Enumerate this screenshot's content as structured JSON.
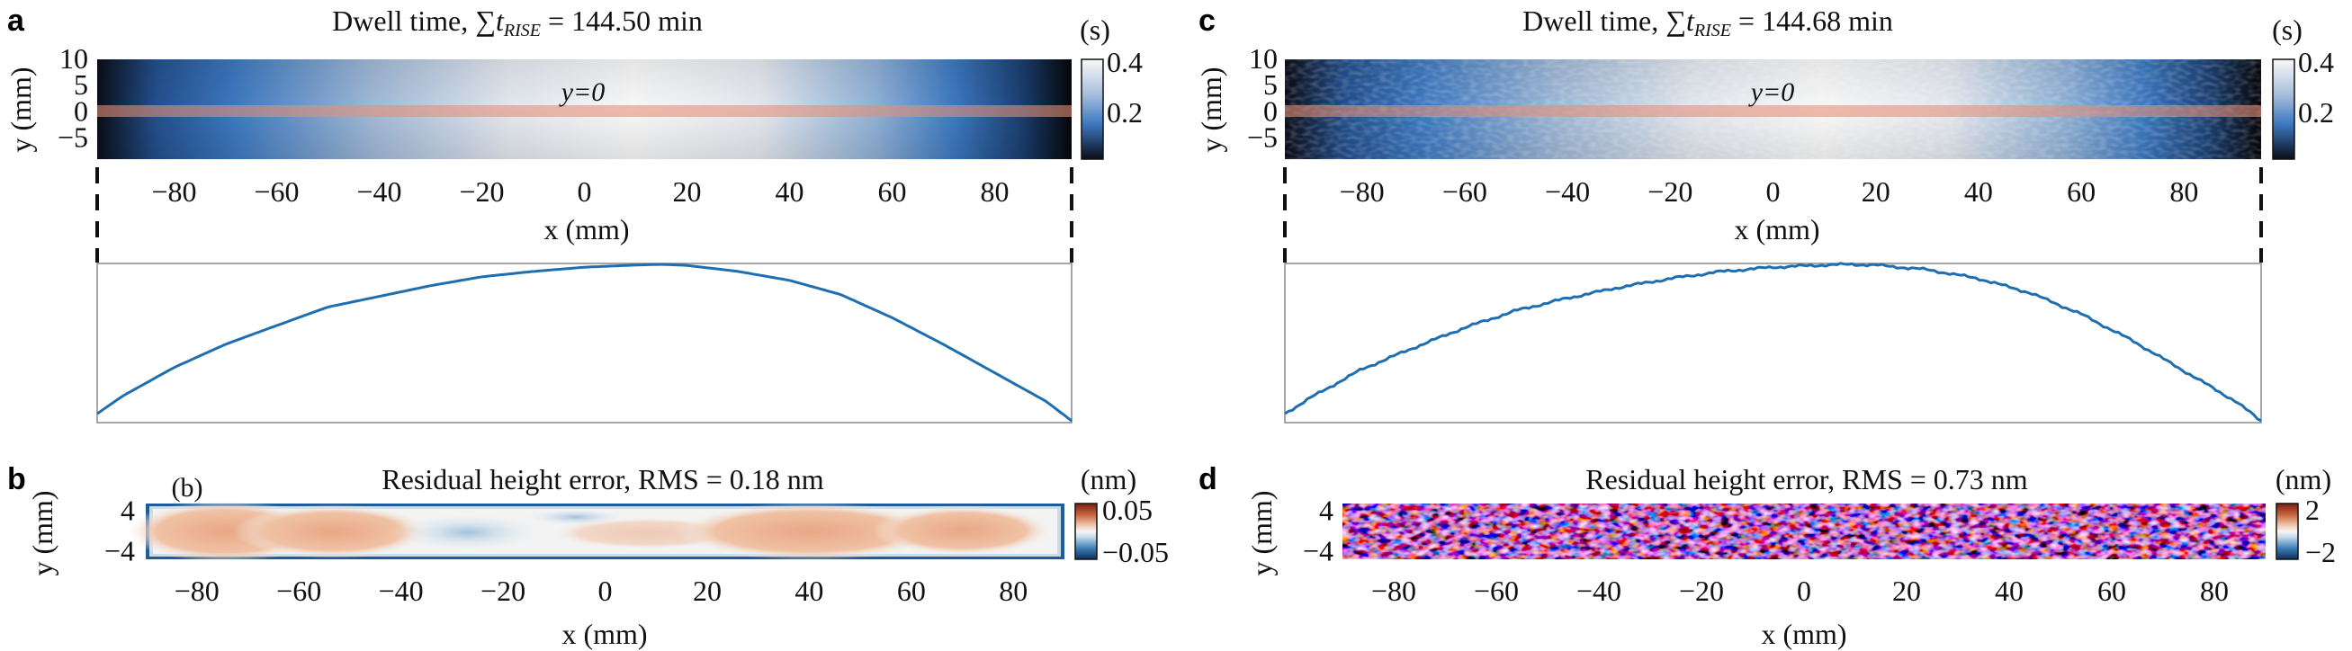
{
  "colors": {
    "dwell_dark": "#0b0d17",
    "dwell_mid": "#3c78c0",
    "dwell_light": "#f7f7f7",
    "profile_line": "#1f6fb0",
    "residual_red": "#b2482a",
    "residual_peach": "#eebf9f",
    "residual_blue": "#1d5d9b",
    "stripe": "#e58f78"
  },
  "panels": {
    "a": {
      "letter": "a",
      "title_prefix": "Dwell time, ",
      "sum_symbol": "∑",
      "t_symbol": "t",
      "t_subscript": "RISE",
      "title_suffix": " = 144.50 min",
      "unit": "(s)",
      "colorbar_ticks": [
        "0.4",
        "0.2"
      ],
      "line_label": "y=0",
      "ylabel": "y (mm)",
      "yticks": [
        "10",
        "5",
        "0",
        "−5"
      ],
      "xlabel": "x (mm)",
      "xticks": [
        "−80",
        "−60",
        "−40",
        "−20",
        "0",
        "20",
        "40",
        "60",
        "80"
      ]
    },
    "b": {
      "letter": "b",
      "inset_label": "(b)",
      "title": "Residual height error, RMS = 0.18 nm",
      "unit": "(nm)",
      "colorbar_ticks": [
        "0.05",
        "−0.05"
      ],
      "ylabel": "y (mm)",
      "yticks": [
        "4",
        "−4"
      ],
      "xlabel": "x (mm)",
      "xticks": [
        "−80",
        "−60",
        "−40",
        "−20",
        "0",
        "20",
        "40",
        "60",
        "80"
      ]
    },
    "c": {
      "letter": "c",
      "title_prefix": "Dwell time, ",
      "sum_symbol": "∑",
      "t_symbol": "t",
      "t_subscript": "RISE",
      "title_suffix": " = 144.68 min",
      "unit": "(s)",
      "colorbar_ticks": [
        "0.4",
        "0.2"
      ],
      "line_label": "y=0",
      "ylabel": "y (mm)",
      "yticks": [
        "10",
        "5",
        "0",
        "−5"
      ],
      "xlabel": "x (mm)",
      "xticks": [
        "−80",
        "−60",
        "−40",
        "−20",
        "0",
        "20",
        "40",
        "60",
        "80"
      ]
    },
    "d": {
      "letter": "d",
      "title": "Residual height error, RMS = 0.73 nm",
      "unit": "(nm)",
      "colorbar_ticks": [
        "2",
        "−2"
      ],
      "ylabel": "y (mm)",
      "yticks": [
        "4",
        "−4"
      ],
      "xlabel": "x (mm)",
      "xticks": [
        "−80",
        "−60",
        "−40",
        "−20",
        "0",
        "20",
        "40",
        "60",
        "80"
      ]
    }
  },
  "chart_data": [
    {
      "panel": "a",
      "type": "heatmap",
      "title": "Dwell time, ∑tRISE = 144.50 min",
      "xlabel": "x (mm)",
      "ylabel": "y (mm)",
      "xlim": [
        -95,
        95
      ],
      "ylim": [
        -9,
        10
      ],
      "colorbar": {
        "label": "(s)",
        "range": [
          0,
          0.45
        ],
        "ticks": [
          0.2,
          0.4
        ]
      },
      "profile_x": [
        -95,
        -90,
        -80,
        -70,
        -60,
        -50,
        -40,
        -30,
        -20,
        -10,
        0,
        10,
        15,
        20,
        30,
        40,
        50,
        60,
        70,
        80,
        90,
        95
      ],
      "profile_values": [
        0.02,
        0.07,
        0.15,
        0.215,
        0.268,
        0.32,
        0.35,
        0.38,
        0.405,
        0.42,
        0.432,
        0.438,
        0.44,
        0.437,
        0.42,
        0.395,
        0.355,
        0.29,
        0.215,
        0.135,
        0.055,
        0.0
      ]
    },
    {
      "panel": "a-profile",
      "type": "line",
      "x": [
        -95,
        -90,
        -80,
        -70,
        -60,
        -50,
        -40,
        -30,
        -20,
        -10,
        0,
        10,
        15,
        20,
        30,
        40,
        50,
        60,
        70,
        80,
        90,
        95
      ],
      "values": [
        0.02,
        0.07,
        0.15,
        0.215,
        0.268,
        0.32,
        0.35,
        0.38,
        0.405,
        0.42,
        0.432,
        0.438,
        0.44,
        0.437,
        0.42,
        0.395,
        0.355,
        0.29,
        0.215,
        0.135,
        0.055,
        0.0
      ],
      "note_label": "y=0"
    },
    {
      "panel": "b",
      "type": "heatmap",
      "title": "Residual height error, RMS = 0.18 nm",
      "xlabel": "x (mm)",
      "ylabel": "y (mm)",
      "xlim": [
        -90,
        90
      ],
      "ylim": [
        -5,
        5
      ],
      "colorbar": {
        "label": "(nm)",
        "range": [
          -0.07,
          0.07
        ],
        "ticks": [
          0.05,
          -0.05
        ]
      }
    },
    {
      "panel": "c",
      "type": "heatmap",
      "title": "Dwell time, ∑tRISE = 144.68 min",
      "xlabel": "x (mm)",
      "ylabel": "y (mm)",
      "xlim": [
        -95,
        95
      ],
      "ylim": [
        -9,
        10
      ],
      "colorbar": {
        "label": "(s)",
        "range": [
          0,
          0.45
        ],
        "ticks": [
          0.2,
          0.4
        ]
      },
      "profile_x": [
        -95,
        -90,
        -80,
        -70,
        -60,
        -50,
        -40,
        -30,
        -20,
        -10,
        0,
        10,
        15,
        20,
        30,
        40,
        50,
        60,
        70,
        80,
        90,
        95
      ],
      "profile_values": [
        0.02,
        0.065,
        0.145,
        0.205,
        0.262,
        0.31,
        0.345,
        0.375,
        0.4,
        0.42,
        0.432,
        0.438,
        0.44,
        0.438,
        0.425,
        0.4,
        0.36,
        0.3,
        0.225,
        0.14,
        0.055,
        0.0
      ]
    },
    {
      "panel": "c-profile",
      "type": "line",
      "x": [
        -95,
        -90,
        -80,
        -70,
        -60,
        -50,
        -40,
        -30,
        -20,
        -10,
        0,
        10,
        15,
        20,
        30,
        40,
        50,
        60,
        70,
        80,
        90,
        95
      ],
      "values": [
        0.02,
        0.065,
        0.145,
        0.205,
        0.262,
        0.31,
        0.345,
        0.375,
        0.4,
        0.42,
        0.432,
        0.438,
        0.44,
        0.438,
        0.425,
        0.4,
        0.36,
        0.3,
        0.225,
        0.14,
        0.055,
        0.0
      ],
      "note_label": "y=0"
    },
    {
      "panel": "d",
      "type": "heatmap",
      "title": "Residual height error, RMS = 0.73 nm",
      "xlabel": "x (mm)",
      "ylabel": "y (mm)",
      "xlim": [
        -90,
        90
      ],
      "ylim": [
        -5,
        5
      ],
      "colorbar": {
        "label": "(nm)",
        "range": [
          -2.5,
          2.5
        ],
        "ticks": [
          2,
          -2
        ]
      }
    }
  ]
}
